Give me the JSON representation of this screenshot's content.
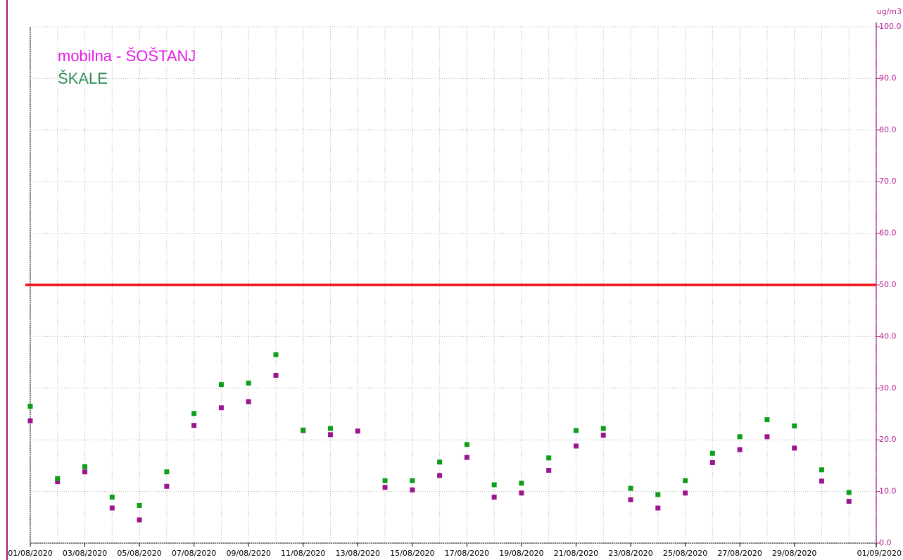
{
  "chart_data": {
    "type": "scatter",
    "unit_label": "ug/m3",
    "x": [
      "01/08/2020",
      "02/08/2020",
      "03/08/2020",
      "04/08/2020",
      "05/08/2020",
      "06/08/2020",
      "07/08/2020",
      "08/08/2020",
      "09/08/2020",
      "10/08/2020",
      "11/08/2020",
      "12/08/2020",
      "13/08/2020",
      "14/08/2020",
      "15/08/2020",
      "16/08/2020",
      "17/08/2020",
      "18/08/2020",
      "19/08/2020",
      "20/08/2020",
      "21/08/2020",
      "22/08/2020",
      "23/08/2020",
      "24/08/2020",
      "25/08/2020",
      "26/08/2020",
      "27/08/2020",
      "28/08/2020",
      "29/08/2020",
      "30/08/2020",
      "31/08/2020"
    ],
    "series": [
      {
        "name": "mobilna - ŠOŠTANJ",
        "color": "#9c1590",
        "legend_color": "#e619e6",
        "values": [
          23.7,
          11.9,
          13.8,
          6.8,
          4.5,
          11.0,
          22.8,
          26.2,
          27.4,
          32.5,
          21.8,
          21.0,
          21.7,
          10.8,
          10.3,
          13.1,
          16.6,
          8.9,
          9.7,
          14.1,
          18.8,
          20.9,
          8.4,
          6.8,
          9.7,
          15.6,
          18.1,
          20.6,
          18.4,
          12.0,
          8.1
        ]
      },
      {
        "name": "ŠKALE",
        "color": "#0e9e1a",
        "legend_color": "#2e8b57",
        "values": [
          26.5,
          12.5,
          14.8,
          8.9,
          7.3,
          13.8,
          25.1,
          30.7,
          31.0,
          36.5,
          21.9,
          22.2,
          null,
          12.1,
          12.1,
          15.7,
          19.1,
          11.3,
          11.6,
          16.5,
          21.8,
          22.2,
          10.6,
          9.4,
          12.1,
          17.4,
          20.6,
          23.9,
          22.7,
          14.2,
          9.8
        ]
      }
    ],
    "xlim": [
      "01/08/2020",
      "01/09/2020"
    ],
    "xticks": [
      "01/08/2020",
      "03/08/2020",
      "05/08/2020",
      "07/08/2020",
      "09/08/2020",
      "11/08/2020",
      "13/08/2020",
      "15/08/2020",
      "17/08/2020",
      "19/08/2020",
      "21/08/2020",
      "23/08/2020",
      "25/08/2020",
      "27/08/2020",
      "29/08/2020",
      "01/09/2020"
    ],
    "ylim": [
      0,
      100
    ],
    "yticks": [
      {
        "value": 0,
        "label": "0.0"
      },
      {
        "value": 10,
        "label": "10.0"
      },
      {
        "value": 20,
        "label": "20.0"
      },
      {
        "value": 30,
        "label": "30.0"
      },
      {
        "value": 40,
        "label": "40.0"
      },
      {
        "value": 50,
        "label": "50.0"
      },
      {
        "value": 60,
        "label": "60.0"
      },
      {
        "value": 70,
        "label": "70.0"
      },
      {
        "value": 80,
        "label": "80.0"
      },
      {
        "value": 90,
        "label": "90.0"
      },
      {
        "value": 100,
        "label": "100.0"
      }
    ],
    "axis_color": "#b0208f",
    "threshold": {
      "value": 50,
      "color": "#ee1111"
    },
    "grid": true
  }
}
